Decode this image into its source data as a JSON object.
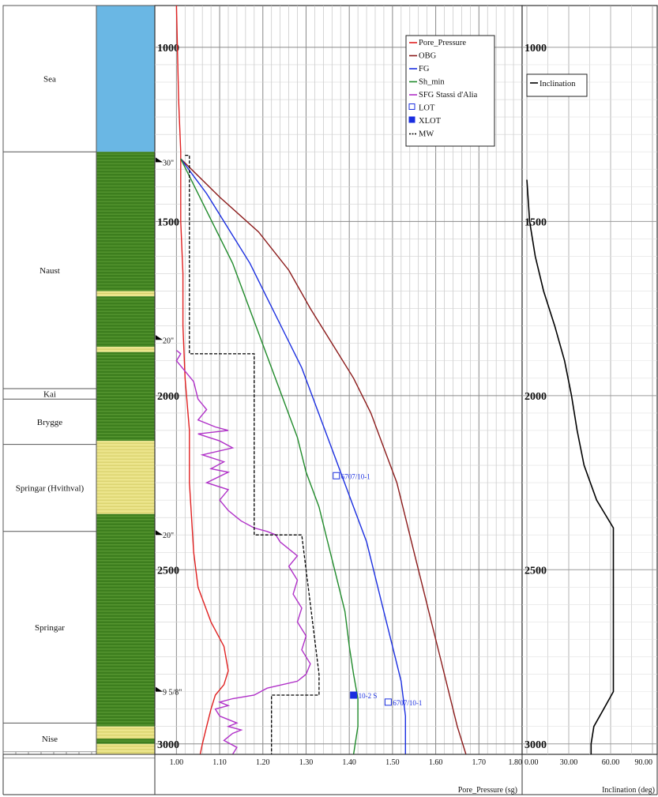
{
  "chart_data": [
    {
      "type": "line",
      "panel": "pressure",
      "xlabel": "Pore_Pressure (sg)",
      "xlim": [
        0.95,
        1.8
      ],
      "x_ticks": [
        "1.00",
        "1.10",
        "1.20",
        "1.30",
        "1.40",
        "1.50",
        "1.60",
        "1.70",
        "1.80"
      ],
      "y_ticks": [
        "1000",
        "1500",
        "2000",
        "2500",
        "3000"
      ],
      "ylim": [
        880,
        3030
      ],
      "y_reversed": true,
      "grid": true,
      "legend_position": "top-right",
      "series": [
        {
          "name": "Pore_Pressure",
          "color": "#e02020",
          "points": [
            [
              1.0,
              880
            ],
            [
              1.005,
              1150
            ],
            [
              1.01,
              1300
            ],
            [
              1.01,
              1500
            ],
            [
              1.015,
              1650
            ],
            [
              1.015,
              1800
            ],
            [
              1.02,
              1950
            ],
            [
              1.03,
              2100
            ],
            [
              1.03,
              2250
            ],
            [
              1.04,
              2450
            ],
            [
              1.05,
              2550
            ],
            [
              1.08,
              2650
            ],
            [
              1.11,
              2720
            ],
            [
              1.12,
              2790
            ],
            [
              1.11,
              2830
            ],
            [
              1.09,
              2860
            ],
            [
              1.08,
              2900
            ],
            [
              1.07,
              2950
            ],
            [
              1.06,
              3000
            ],
            [
              1.055,
              3030
            ]
          ]
        },
        {
          "name": "OBG",
          "color": "#8b1a1a",
          "points": [
            [
              1.01,
              1320
            ],
            [
              1.1,
              1430
            ],
            [
              1.19,
              1530
            ],
            [
              1.26,
              1640
            ],
            [
              1.31,
              1750
            ],
            [
              1.36,
              1850
            ],
            [
              1.41,
              1950
            ],
            [
              1.45,
              2050
            ],
            [
              1.48,
              2150
            ],
            [
              1.51,
              2250
            ],
            [
              1.53,
              2350
            ],
            [
              1.55,
              2450
            ],
            [
              1.57,
              2550
            ],
            [
              1.59,
              2650
            ],
            [
              1.61,
              2750
            ],
            [
              1.63,
              2850
            ],
            [
              1.65,
              2950
            ],
            [
              1.67,
              3030
            ]
          ]
        },
        {
          "name": "FG",
          "color": "#1a2ee0",
          "points": [
            [
              1.01,
              1320
            ],
            [
              1.07,
              1420
            ],
            [
              1.12,
              1520
            ],
            [
              1.17,
              1620
            ],
            [
              1.21,
              1720
            ],
            [
              1.25,
              1820
            ],
            [
              1.29,
              1920
            ],
            [
              1.32,
              2020
            ],
            [
              1.35,
              2120
            ],
            [
              1.38,
              2220
            ],
            [
              1.41,
              2320
            ],
            [
              1.44,
              2420
            ],
            [
              1.46,
              2520
            ],
            [
              1.48,
              2620
            ],
            [
              1.5,
              2720
            ],
            [
              1.52,
              2820
            ],
            [
              1.53,
              2920
            ],
            [
              1.53,
              3030
            ]
          ]
        },
        {
          "name": "Sh_min",
          "color": "#1f8a2a",
          "points": [
            [
              1.01,
              1320
            ],
            [
              1.05,
              1420
            ],
            [
              1.09,
              1520
            ],
            [
              1.13,
              1620
            ],
            [
              1.16,
              1720
            ],
            [
              1.19,
              1820
            ],
            [
              1.22,
              1920
            ],
            [
              1.25,
              2020
            ],
            [
              1.28,
              2120
            ],
            [
              1.3,
              2220
            ],
            [
              1.33,
              2320
            ],
            [
              1.35,
              2420
            ],
            [
              1.37,
              2520
            ],
            [
              1.39,
              2620
            ],
            [
              1.4,
              2720
            ],
            [
              1.41,
              2800
            ],
            [
              1.42,
              2870
            ],
            [
              1.42,
              2950
            ],
            [
              1.41,
              3030
            ]
          ]
        },
        {
          "name": "SFG Stassi d'Alia",
          "color": "#b030c8",
          "points": [
            [
              1.0,
              1870
            ],
            [
              1.01,
              1880
            ],
            [
              1.0,
              1900
            ],
            [
              1.04,
              1960
            ],
            [
              1.05,
              2010
            ],
            [
              1.07,
              2040
            ],
            [
              1.05,
              2070
            ],
            [
              1.09,
              2090
            ],
            [
              1.12,
              2100
            ],
            [
              1.05,
              2110
            ],
            [
              1.1,
              2130
            ],
            [
              1.13,
              2150
            ],
            [
              1.06,
              2170
            ],
            [
              1.11,
              2190
            ],
            [
              1.08,
              2210
            ],
            [
              1.12,
              2220
            ],
            [
              1.07,
              2250
            ],
            [
              1.12,
              2270
            ],
            [
              1.1,
              2300
            ],
            [
              1.12,
              2330
            ],
            [
              1.14,
              2350
            ],
            [
              1.15,
              2360
            ],
            [
              1.18,
              2380
            ],
            [
              1.21,
              2390
            ],
            [
              1.23,
              2400
            ],
            [
              1.24,
              2420
            ],
            [
              1.26,
              2440
            ],
            [
              1.28,
              2460
            ],
            [
              1.26,
              2490
            ],
            [
              1.28,
              2530
            ],
            [
              1.27,
              2570
            ],
            [
              1.29,
              2610
            ],
            [
              1.28,
              2650
            ],
            [
              1.3,
              2690
            ],
            [
              1.29,
              2730
            ],
            [
              1.31,
              2770
            ],
            [
              1.3,
              2800
            ],
            [
              1.28,
              2820
            ],
            [
              1.21,
              2840
            ],
            [
              1.18,
              2860
            ],
            [
              1.13,
              2870
            ],
            [
              1.1,
              2880
            ],
            [
              1.12,
              2890
            ],
            [
              1.09,
              2900
            ],
            [
              1.1,
              2920
            ],
            [
              1.14,
              2940
            ],
            [
              1.12,
              2950
            ],
            [
              1.15,
              2960
            ],
            [
              1.13,
              2970
            ],
            [
              1.11,
              2990
            ],
            [
              1.14,
              3010
            ],
            [
              1.13,
              3030
            ]
          ]
        },
        {
          "name": "MW",
          "color": "#000000",
          "dash": true,
          "points": [
            [
              1.02,
              1310
            ],
            [
              1.03,
              1310
            ],
            [
              1.03,
              1880
            ],
            [
              1.18,
              1880
            ],
            [
              1.18,
              2400
            ],
            [
              1.29,
              2400
            ],
            [
              1.33,
              2800
            ],
            [
              1.33,
              2860
            ],
            [
              1.22,
              2860
            ],
            [
              1.22,
              3030
            ]
          ]
        }
      ],
      "markers": [
        {
          "series": "LOT",
          "x": 1.37,
          "y": 2230,
          "filled": false,
          "color": "#1a2ee0",
          "label": "6707/10-1"
        },
        {
          "series": "LOT",
          "x": 1.49,
          "y": 2880,
          "filled": false,
          "color": "#1a2ee0",
          "label": "6707/10-1"
        },
        {
          "series": "XLOT",
          "x": 1.41,
          "y": 2860,
          "filled": true,
          "color": "#1a2ee0",
          "label": "10-2 S"
        }
      ],
      "casing_shoes": [
        {
          "label": "30\"",
          "y": 1330
        },
        {
          "label": "20\"",
          "y": 1840
        },
        {
          "label": "20\"",
          "y": 2400
        },
        {
          "label": "9 5/8\"",
          "y": 2850
        }
      ]
    },
    {
      "type": "line",
      "panel": "inclination",
      "xlabel": "Inclination (deg)",
      "xlim": [
        0,
        90
      ],
      "x_ticks": [
        "0.00",
        "30.00",
        "60.00",
        "90.00"
      ],
      "y_ticks": [
        "1000",
        "1500",
        "2000",
        "2500",
        "3000"
      ],
      "ylim": [
        880,
        3030
      ],
      "y_reversed": true,
      "legend_position": "top-left",
      "series": [
        {
          "name": "Inclination",
          "color": "#000000",
          "points": [
            [
              0,
              1380
            ],
            [
              2,
              1500
            ],
            [
              6,
              1600
            ],
            [
              12,
              1700
            ],
            [
              20,
              1800
            ],
            [
              27,
              1900
            ],
            [
              32,
              2000
            ],
            [
              36,
              2100
            ],
            [
              41,
              2200
            ],
            [
              50,
              2300
            ],
            [
              62,
              2380
            ],
            [
              62,
              2850
            ],
            [
              55,
              2900
            ],
            [
              48,
              2950
            ],
            [
              46,
              3000
            ],
            [
              46,
              3030
            ]
          ]
        }
      ]
    }
  ],
  "formations": [
    {
      "name": "Sea",
      "top": 880,
      "bottom": 1300
    },
    {
      "name": "Naust",
      "top": 1300,
      "bottom": 1980
    },
    {
      "name": "Kai",
      "top": 1980,
      "bottom": 2010
    },
    {
      "name": "Brygge",
      "top": 2010,
      "bottom": 2140
    },
    {
      "name": "Springar (Hvithval)",
      "top": 2140,
      "bottom": 2390
    },
    {
      "name": "Springar",
      "top": 2390,
      "bottom": 2940
    },
    {
      "name": "Nise",
      "top": 2940,
      "bottom": 3030
    }
  ],
  "lithology": [
    {
      "top": 880,
      "bottom": 1300,
      "color": "#6ab7e4"
    },
    {
      "top": 1300,
      "bottom": 1700,
      "color": "#3d7e1e"
    },
    {
      "top": 1700,
      "bottom": 1715,
      "color": "#ece58c"
    },
    {
      "top": 1715,
      "bottom": 1860,
      "color": "#3d7e1e"
    },
    {
      "top": 1860,
      "bottom": 1875,
      "color": "#ece58c"
    },
    {
      "top": 1875,
      "bottom": 2130,
      "color": "#3d7e1e"
    },
    {
      "top": 2130,
      "bottom": 2340,
      "color": "#ece58c"
    },
    {
      "top": 2340,
      "bottom": 2950,
      "color": "#3d7e1e"
    },
    {
      "top": 2950,
      "bottom": 2985,
      "color": "#ece58c"
    },
    {
      "top": 2985,
      "bottom": 3000,
      "color": "#3d7e1e"
    },
    {
      "top": 3000,
      "bottom": 3030,
      "color": "#ece58c"
    }
  ],
  "legend": [
    "Pore_Pressure",
    "OBG",
    "FG",
    "Sh_min",
    "SFG Stassi d'Alia",
    "LOT",
    "XLOT",
    "MW"
  ]
}
